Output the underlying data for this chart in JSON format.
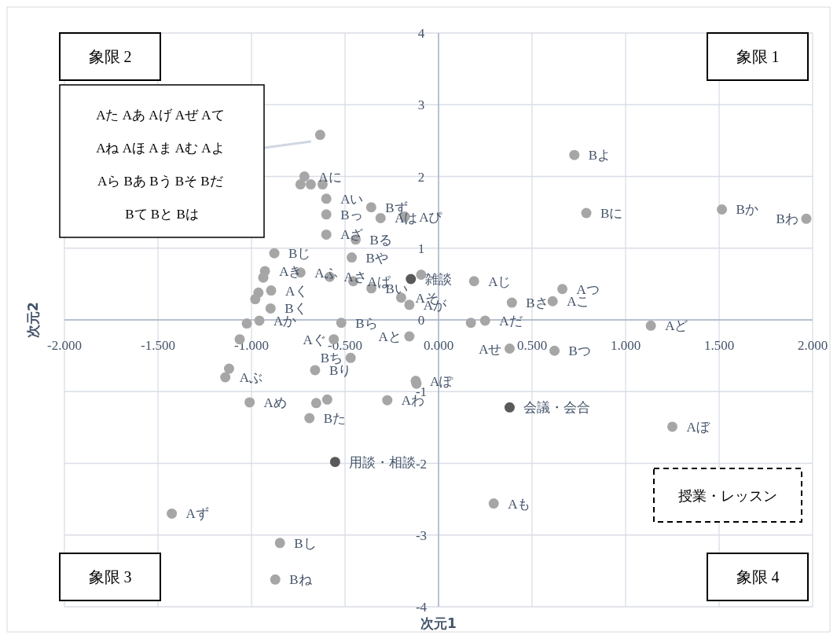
{
  "chart_data": {
    "type": "scatter",
    "xlabel": "次元1",
    "ylabel": "次元2",
    "xlim": [
      -2,
      2
    ],
    "ylim": [
      -4,
      4
    ],
    "xticks": [
      {
        "value": -2,
        "label": "-2.000"
      },
      {
        "value": -1.5,
        "label": "-1.500"
      },
      {
        "value": -1,
        "label": "-1.000"
      },
      {
        "value": -0.5,
        "label": "-0.500"
      },
      {
        "value": 0,
        "label": "0.000"
      },
      {
        "value": 0.5,
        "label": "0.500"
      },
      {
        "value": 1,
        "label": "1.000"
      },
      {
        "value": 1.5,
        "label": "1.500"
      },
      {
        "value": 2,
        "label": "2.000"
      }
    ],
    "yticks": [
      -4,
      -3,
      -2,
      -1,
      0,
      1,
      2,
      3,
      4
    ],
    "grid": true,
    "marker": "circle",
    "series": [
      {
        "color": "#a6a6a6",
        "x": [
          0.726,
          0.79,
          1.515,
          1.966,
          1.135,
          1.25,
          0.295,
          -1.426,
          -0.848,
          -0.873,
          0.662,
          0.392,
          0.61,
          0.19,
          -0.093,
          -0.156,
          -0.156,
          0.173,
          0.249,
          0.38,
          0.62,
          -0.122,
          -0.118,
          -0.274,
          -0.47,
          -0.52,
          -0.56,
          -0.66,
          -0.654,
          -0.595,
          -0.69,
          -1.01,
          -1.12,
          -1.14,
          -0.717,
          -0.738,
          -0.683,
          -0.62,
          -0.6,
          -0.6,
          -0.6,
          -0.36,
          -0.31,
          -0.18,
          -0.443,
          -0.464,
          -0.878,
          -0.928,
          -0.937,
          -0.738,
          -0.582,
          -0.456,
          -0.359,
          -0.2,
          -0.895,
          -0.963,
          -0.98,
          -0.898,
          -1.025,
          -0.958,
          -1.063,
          -0.633
        ],
        "values": [
          2.3,
          1.49,
          1.54,
          1.41,
          -0.08,
          -1.49,
          -2.56,
          -2.7,
          -3.11,
          -3.62,
          0.43,
          0.24,
          0.26,
          0.54,
          0.63,
          0.21,
          -0.23,
          -0.04,
          -0.01,
          -0.4,
          -0.43,
          -0.85,
          -0.89,
          -1.12,
          -0.53,
          -0.04,
          -0.27,
          -0.7,
          -1.16,
          -1.11,
          -1.37,
          -1.15,
          -0.68,
          -0.8,
          2,
          1.89,
          1.89,
          1.89,
          1.69,
          1.47,
          1.19,
          1.57,
          1.42,
          1.44,
          1.12,
          0.87,
          0.93,
          0.68,
          0.59,
          0.66,
          0.6,
          0.54,
          0.44,
          0.31,
          0.41,
          0.38,
          0.29,
          0.16,
          -0.05,
          -0.01,
          -0.27,
          2.58
        ],
        "value_labels": [
          "Bよ",
          "Bに",
          "Bか",
          "Bわ",
          "Aど",
          "Aぼ",
          "Aも",
          "Aず",
          "Bし",
          "Bね",
          "Aつ",
          "Bさ",
          "Aこ",
          "Aじ",
          null,
          "Aが",
          "Aと",
          null,
          "Aだ",
          "Aせ",
          "Bつ",
          "Aぽ",
          null,
          "Aわ",
          "Bち",
          "Bら",
          "Aぐ",
          "Bり",
          null,
          null,
          "Bた",
          "Aめ",
          null,
          "Aぶ",
          "Aに",
          null,
          null,
          null,
          "Aい",
          "Bっ",
          "Aざ",
          "Bず",
          "Aは",
          "Aぴ",
          "Bる",
          "Bや",
          "Bじ",
          "Aき",
          null,
          "Aふ",
          "Aさ",
          "Aぱ",
          "Bい",
          "Aそ",
          "Aく",
          null,
          null,
          "Bく",
          null,
          "Aか",
          null,
          null
        ]
      },
      {
        "color": "#595959",
        "x": [
          -0.148,
          0.38,
          -0.553
        ],
        "values": [
          0.57,
          -1.22,
          -1.98
        ],
        "value_labels": [
          "雑談",
          "会議・会合",
          "用談・相談"
        ]
      }
    ],
    "annotations": [
      "象限 2",
      "象限 1",
      "象限 3",
      "象限 4",
      "授業・レッスン",
      "Aた Aあ Aげ Aぜ Aて Aね Aほ Aま Aむ Aよ Aら Bあ Bう Bそ Bだ Bて Bと Bは"
    ]
  }
}
